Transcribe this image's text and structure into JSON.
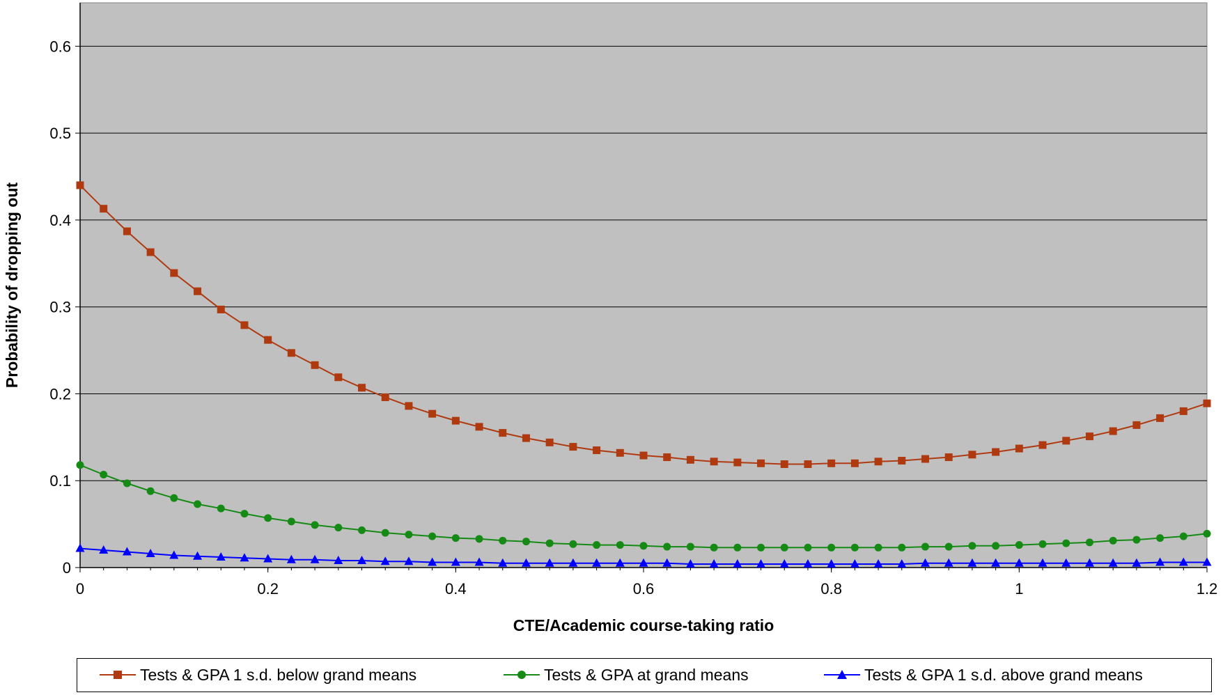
{
  "chart_data": {
    "type": "line",
    "title": "",
    "xlabel": "CTE/Academic course-taking ratio",
    "ylabel": "Probability of dropping out",
    "xlim": [
      0,
      1.2
    ],
    "ylim": [
      0,
      0.6
    ],
    "x_ticks": [
      "0",
      "0.2",
      "0.4",
      "0.6",
      "0.8",
      "1",
      "1.2"
    ],
    "y_ticks": [
      "0",
      "0.1",
      "0.2",
      "0.3",
      "0.4",
      "0.5",
      "0.6"
    ],
    "grid": true,
    "plot_background": "#c0c0c0",
    "legend_position": "bottom",
    "x": [
      0,
      0.025,
      0.05,
      0.075,
      0.1,
      0.125,
      0.15,
      0.175,
      0.2,
      0.225,
      0.25,
      0.275,
      0.3,
      0.325,
      0.35,
      0.375,
      0.4,
      0.425,
      0.45,
      0.475,
      0.5,
      0.525,
      0.55,
      0.575,
      0.6,
      0.625,
      0.65,
      0.675,
      0.7,
      0.725,
      0.75,
      0.775,
      0.8,
      0.825,
      0.85,
      0.875,
      0.9,
      0.925,
      0.95,
      0.975,
      1.0,
      1.025,
      1.05,
      1.075,
      1.1,
      1.125,
      1.15,
      1.175,
      1.2
    ],
    "series": [
      {
        "name": "Tests & GPA 1 s.d. below grand means",
        "color": "#b03a10",
        "marker": "square",
        "values": [
          0.44,
          0.413,
          0.387,
          0.363,
          0.339,
          0.318,
          0.297,
          0.279,
          0.262,
          0.247,
          0.233,
          0.219,
          0.207,
          0.196,
          0.186,
          0.177,
          0.169,
          0.162,
          0.155,
          0.149,
          0.144,
          0.139,
          0.135,
          0.132,
          0.129,
          0.127,
          0.124,
          0.122,
          0.121,
          0.12,
          0.119,
          0.119,
          0.12,
          0.12,
          0.122,
          0.123,
          0.125,
          0.127,
          0.13,
          0.133,
          0.137,
          0.141,
          0.146,
          0.151,
          0.157,
          0.164,
          0.172,
          0.18,
          0.189
        ]
      },
      {
        "name": "Tests & GPA at grand means",
        "color": "#158a15",
        "marker": "circle",
        "values": [
          0.118,
          0.107,
          0.097,
          0.088,
          0.08,
          0.073,
          0.068,
          0.062,
          0.057,
          0.053,
          0.049,
          0.046,
          0.043,
          0.04,
          0.038,
          0.036,
          0.034,
          0.033,
          0.031,
          0.03,
          0.028,
          0.027,
          0.026,
          0.026,
          0.025,
          0.024,
          0.024,
          0.023,
          0.023,
          0.023,
          0.023,
          0.023,
          0.023,
          0.023,
          0.023,
          0.023,
          0.024,
          0.024,
          0.025,
          0.025,
          0.026,
          0.027,
          0.028,
          0.029,
          0.031,
          0.032,
          0.034,
          0.036,
          0.039
        ]
      },
      {
        "name": "Tests & GPA 1 s.d. above grand means",
        "color": "#0000ff",
        "marker": "triangle",
        "values": [
          0.022,
          0.02,
          0.018,
          0.016,
          0.014,
          0.013,
          0.012,
          0.011,
          0.01,
          0.009,
          0.009,
          0.008,
          0.008,
          0.007,
          0.007,
          0.006,
          0.006,
          0.006,
          0.005,
          0.005,
          0.005,
          0.005,
          0.005,
          0.005,
          0.005,
          0.005,
          0.004,
          0.004,
          0.004,
          0.004,
          0.004,
          0.004,
          0.004,
          0.004,
          0.004,
          0.004,
          0.005,
          0.005,
          0.005,
          0.005,
          0.005,
          0.005,
          0.005,
          0.005,
          0.005,
          0.005,
          0.006,
          0.006,
          0.006
        ]
      }
    ]
  }
}
